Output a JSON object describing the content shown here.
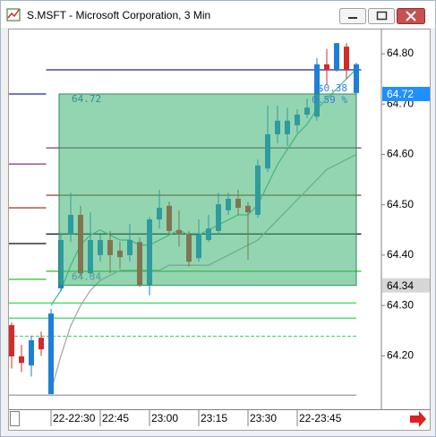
{
  "chart_data": {
    "type": "candlestick",
    "title": "S.MSFT - Microsoft Corporation, 3 Min",
    "categories": [
      null,
      null,
      null,
      null,
      "22-22:30",
      null,
      null,
      null,
      null,
      "22:45",
      null,
      null,
      null,
      null,
      "23:00",
      null,
      null,
      null,
      null,
      "23:15",
      null,
      null,
      null,
      null,
      "23:30",
      null,
      null,
      null,
      null,
      "22-23:45",
      null,
      null,
      null,
      null,
      null,
      null
    ],
    "open": [
      64.261,
      64.199,
      64.181,
      64.236,
      64.124,
      64.334,
      64.441,
      64.48,
      64.364,
      64.4,
      64.43,
      64.409,
      64.4,
      64.426,
      64.341,
      64.471,
      64.498,
      64.45,
      64.441,
      64.394,
      64.43,
      64.448,
      64.489,
      64.512,
      64.498,
      64.48,
      64.572,
      64.64,
      64.64,
      64.658,
      64.679,
      64.675,
      64.779,
      64.768,
      64.814,
      64.722
    ],
    "high": [
      64.266,
      64.222,
      64.24,
      64.248,
      64.293,
      64.444,
      64.524,
      64.498,
      64.485,
      64.441,
      64.448,
      64.426,
      64.462,
      64.435,
      64.476,
      64.53,
      64.506,
      64.489,
      64.448,
      64.471,
      64.48,
      64.524,
      64.524,
      64.53,
      64.506,
      64.59,
      64.697,
      64.697,
      64.693,
      64.69,
      64.711,
      64.791,
      64.809,
      64.821,
      64.821,
      64.782
    ],
    "low": [
      64.175,
      64.168,
      64.159,
      64.2,
      64.124,
      64.328,
      64.426,
      64.359,
      64.355,
      64.387,
      64.364,
      64.373,
      64.387,
      64.337,
      64.32,
      64.453,
      64.441,
      64.417,
      64.377,
      64.387,
      64.426,
      64.441,
      64.48,
      64.48,
      64.391,
      64.474,
      64.565,
      64.622,
      64.617,
      64.643,
      64.672,
      64.667,
      64.738,
      64.764,
      64.75,
      64.69
    ],
    "close": [
      64.199,
      64.186,
      64.231,
      64.213,
      64.284,
      64.43,
      64.48,
      64.364,
      64.43,
      64.43,
      64.4,
      64.396,
      64.43,
      64.341,
      64.471,
      64.494,
      64.448,
      64.441,
      64.387,
      64.441,
      64.453,
      64.501,
      64.512,
      64.494,
      64.485,
      64.578,
      64.64,
      64.667,
      64.667,
      64.679,
      64.693,
      64.779,
      64.768,
      64.821,
      64.768,
      64.779
    ],
    "up_color": "#1e7fd6",
    "down_color": "#d42a2a",
    "series": [
      {
        "color": "#4fbf8f",
        "values": [
          null,
          null,
          null,
          null,
          64.3,
          64.33,
          64.38,
          64.42,
          64.44,
          64.45,
          64.44,
          64.43,
          64.43,
          64.42,
          64.42,
          64.43,
          64.44,
          64.45,
          64.44,
          64.44,
          64.45,
          64.46,
          64.47,
          64.48,
          64.48,
          64.5,
          64.54,
          64.58,
          64.61,
          64.64,
          64.66,
          64.69,
          64.71,
          64.73,
          64.75,
          64.77
        ]
      },
      {
        "color": "#a8a8a8",
        "values": [
          null,
          null,
          null,
          null,
          64.13,
          64.2,
          64.26,
          64.3,
          64.33,
          64.35,
          64.36,
          64.37,
          64.37,
          64.37,
          64.37,
          64.37,
          64.38,
          64.38,
          64.38,
          64.38,
          64.38,
          64.39,
          64.4,
          64.41,
          64.42,
          64.43,
          64.45,
          64.47,
          64.49,
          64.51,
          64.53,
          64.55,
          64.57,
          64.58,
          64.59,
          64.6
        ]
      }
    ],
    "levels": [
      {
        "color": "#1a1aa0",
        "values": [
          64.72,
          64.72,
          64.72,
          64.72,
          64.768,
          64.768,
          64.768,
          64.768,
          64.768,
          64.768,
          64.768,
          64.768,
          64.768,
          64.768,
          64.768,
          64.768,
          64.768,
          64.768,
          64.768,
          64.768,
          64.768,
          64.768,
          64.768,
          64.768,
          64.768,
          64.768,
          64.768,
          64.768,
          64.768,
          64.768,
          64.768,
          64.768,
          64.768,
          64.768,
          64.768,
          64.768
        ]
      },
      {
        "color": "#7b2d7b",
        "values": [
          64.581,
          64.581,
          64.581,
          64.581,
          64.613,
          64.613,
          64.613,
          64.613,
          64.613,
          64.613,
          64.613,
          64.613,
          64.613,
          64.613,
          64.613,
          64.613,
          64.613,
          64.613,
          64.613,
          64.613,
          64.613,
          64.613,
          64.613,
          64.613,
          64.613,
          64.613,
          64.613,
          64.613,
          64.613,
          64.613,
          64.613,
          64.613,
          64.613,
          64.613,
          64.613,
          64.613
        ]
      },
      {
        "color": "#8b3a1a",
        "values": [
          64.494,
          64.494,
          64.494,
          64.494,
          64.519,
          64.519,
          64.519,
          64.519,
          64.519,
          64.519,
          64.519,
          64.519,
          64.519,
          64.519,
          64.519,
          64.519,
          64.519,
          64.519,
          64.519,
          64.519,
          64.519,
          64.519,
          64.519,
          64.519,
          64.519,
          64.519,
          64.519,
          64.519,
          64.519,
          64.519,
          64.519,
          64.519,
          64.519,
          64.519,
          64.519,
          64.519
        ]
      },
      {
        "color": "#000000",
        "values": [
          64.423,
          64.423,
          64.423,
          64.423,
          64.442,
          64.442,
          64.442,
          64.442,
          64.442,
          64.442,
          64.442,
          64.442,
          64.442,
          64.442,
          64.442,
          64.442,
          64.442,
          64.442,
          64.442,
          64.442,
          64.442,
          64.442,
          64.442,
          64.442,
          64.442,
          64.442,
          64.442,
          64.442,
          64.442,
          64.442,
          64.442,
          64.442,
          64.442,
          64.442,
          64.442,
          64.442
        ]
      },
      {
        "color": "#22bb22",
        "values": [
          64.352,
          64.352,
          64.352,
          64.352,
          64.368,
          64.368,
          64.368,
          64.368,
          64.368,
          64.368,
          64.368,
          64.368,
          64.368,
          64.368,
          64.368,
          64.368,
          64.368,
          64.368,
          64.368,
          64.368,
          64.368,
          64.368,
          64.368,
          64.368,
          64.368,
          64.368,
          64.368,
          64.368,
          64.368,
          64.368,
          64.368,
          64.368,
          64.368,
          64.368,
          64.368,
          64.368
        ]
      },
      {
        "color": "#33dd55",
        "value": 64.305
      },
      {
        "color": "#33dd55",
        "value": 64.275
      },
      {
        "color": "#55cc77",
        "value": 64.239,
        "dashed": true
      },
      {
        "color": "#999999",
        "value": 64.122
      }
    ],
    "range": {
      "high": 64.72,
      "low": 64.34,
      "change_label": "$0.38",
      "percent_label": "0.59 %",
      "color": "#3cb371"
    },
    "price_flags": [
      {
        "value": 64.72,
        "color": "#1e90ff",
        "text_color": "#ffffff"
      },
      {
        "value": 64.34,
        "color": "#d6d6d6",
        "text_color": "#000000"
      }
    ],
    "ylim": [
      64.094,
      64.848
    ],
    "yticks": [
      {
        "value": 64.2,
        "label": "64.20"
      },
      {
        "value": 64.3,
        "label": "64.30"
      },
      {
        "value": 64.4,
        "label": "64.40"
      },
      {
        "value": 64.5,
        "label": "64.50"
      },
      {
        "value": 64.6,
        "label": "64.60"
      },
      {
        "value": 64.7,
        "label": "64.70"
      },
      {
        "value": 64.8,
        "label": "64.80"
      }
    ],
    "grid": false
  }
}
